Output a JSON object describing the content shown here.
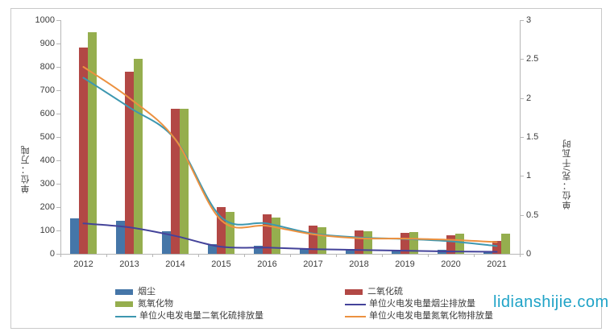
{
  "watermark": {
    "text": "lidianshijie.com",
    "color": "#1fa3c7"
  },
  "chart_data": {
    "type": "bar",
    "subtype": "clustered bars with smoothed overlay lines, dual y-axes",
    "grid": false,
    "categories": [
      "2012",
      "2013",
      "2014",
      "2015",
      "2016",
      "2017",
      "2018",
      "2019",
      "2020",
      "2021"
    ],
    "left_axis": {
      "title": "单位：万吨",
      "min": 0,
      "max": 1000,
      "tick_step": 100,
      "ticks": [
        "0",
        "100",
        "200",
        "300",
        "400",
        "500",
        "600",
        "700",
        "800",
        "900",
        "1000"
      ]
    },
    "right_axis": {
      "title": "单位：克/千瓦时",
      "min": 0,
      "max": 3,
      "tick_step": 0.5,
      "ticks": [
        "0",
        "0.5",
        "1",
        "1.5",
        "2",
        "2.5",
        "3"
      ]
    },
    "bar_series": [
      {
        "name": "烟尘",
        "axis": "left",
        "color": "#4576a8",
        "values": [
          151,
          142,
          98,
          40,
          35,
          26,
          21,
          18,
          16,
          12
        ]
      },
      {
        "name": "二氧化硫",
        "axis": "left",
        "color": "#b24845",
        "values": [
          883,
          780,
          620,
          200,
          170,
          120,
          99,
          89,
          78,
          55
        ]
      },
      {
        "name": "氮氧化物",
        "axis": "left",
        "color": "#95ae4e",
        "values": [
          948,
          834,
          620,
          180,
          155,
          114,
          96,
          93,
          87,
          86
        ]
      }
    ],
    "line_series": [
      {
        "name": "单位火电发电量烟尘排放量",
        "axis": "right",
        "color": "#44439a",
        "values": [
          0.39,
          0.34,
          0.23,
          0.09,
          0.08,
          0.06,
          0.05,
          0.04,
          0.03,
          0.026
        ]
      },
      {
        "name": "单位火电发电量二氧化硫排放量",
        "axis": "right",
        "color": "#3d97b0",
        "values": [
          2.26,
          1.88,
          1.47,
          0.47,
          0.39,
          0.26,
          0.21,
          0.19,
          0.16,
          0.1
        ]
      },
      {
        "name": "单位火电发电量氮氧化物排放量",
        "axis": "right",
        "color": "#ec9140",
        "values": [
          2.4,
          2.0,
          1.47,
          0.43,
          0.36,
          0.25,
          0.2,
          0.195,
          0.18,
          0.15
        ]
      }
    ],
    "legend_position": "bottom"
  },
  "legend": {
    "columns": [
      {
        "items": [
          {
            "label": "烟尘",
            "swatch": "bar",
            "color": "#4576a8"
          },
          {
            "label": "氮氧化物",
            "swatch": "bar",
            "color": "#95ae4e"
          },
          {
            "label": "单位火电发电量二氧化硫排放量",
            "swatch": "line",
            "color": "#3d97b0"
          }
        ]
      },
      {
        "items": [
          {
            "label": "二氧化硫",
            "swatch": "bar",
            "color": "#b24845"
          },
          {
            "label": "单位火电发电量烟尘排放量",
            "swatch": "line",
            "color": "#44439a"
          },
          {
            "label": "单位火电发电量氮氧化物排放量",
            "swatch": "line",
            "color": "#ec9140"
          }
        ]
      }
    ]
  }
}
